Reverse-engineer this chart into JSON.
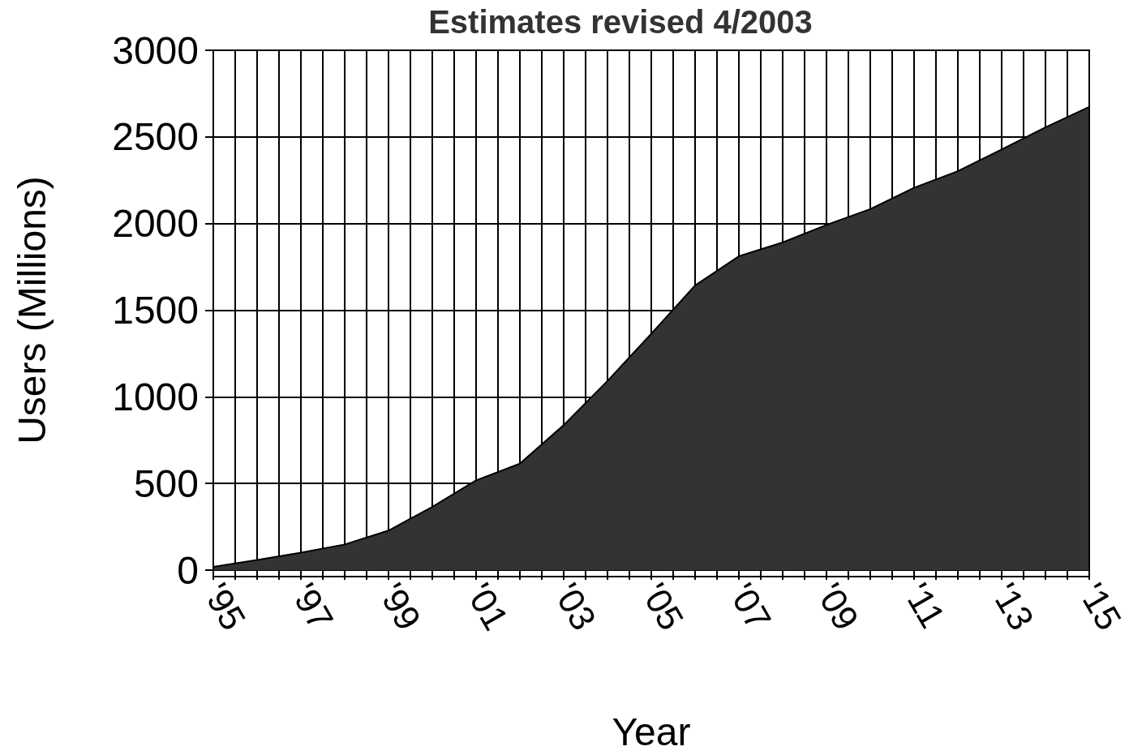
{
  "chart_data": {
    "type": "area",
    "title": "Estimates revised 4/2003",
    "xlabel": "Year",
    "ylabel": "Users (Millions)",
    "x": [
      1995,
      1996,
      1997,
      1998,
      1999,
      2000,
      2001,
      2002,
      2003,
      2004,
      2005,
      2006,
      2007,
      2008,
      2009,
      2010,
      2011,
      2012,
      2013,
      2014,
      2015
    ],
    "series": [
      {
        "color": "#333333",
        "values": [
          19,
          58,
          101,
          148,
          228,
          365,
          518,
          614,
          836,
          1091,
          1363,
          1642,
          1811,
          1891,
          1992,
          2083,
          2206,
          2302,
          2427,
          2555,
          2673
        ]
      }
    ],
    "xlim": [
      1995,
      2015
    ],
    "xticks": [
      {
        "value": 1995,
        "label": "'95"
      },
      {
        "value": 1995.5,
        "label": null
      },
      {
        "value": 1996,
        "label": null
      },
      {
        "value": 1996.5,
        "label": null
      },
      {
        "value": 1997,
        "label": "'97"
      },
      {
        "value": 1997.5,
        "label": null
      },
      {
        "value": 1998,
        "label": null
      },
      {
        "value": 1998.5,
        "label": null
      },
      {
        "value": 1999,
        "label": "'99"
      },
      {
        "value": 1999.5,
        "label": null
      },
      {
        "value": 2000,
        "label": null
      },
      {
        "value": 2000.5,
        "label": null
      },
      {
        "value": 2001,
        "label": "'01"
      },
      {
        "value": 2001.5,
        "label": null
      },
      {
        "value": 2002,
        "label": null
      },
      {
        "value": 2002.5,
        "label": null
      },
      {
        "value": 2003,
        "label": "'03"
      },
      {
        "value": 2003.5,
        "label": null
      },
      {
        "value": 2004,
        "label": null
      },
      {
        "value": 2004.5,
        "label": null
      },
      {
        "value": 2005,
        "label": "'05"
      },
      {
        "value": 2005.5,
        "label": null
      },
      {
        "value": 2006,
        "label": null
      },
      {
        "value": 2006.5,
        "label": null
      },
      {
        "value": 2007,
        "label": "'07"
      },
      {
        "value": 2007.5,
        "label": null
      },
      {
        "value": 2008,
        "label": null
      },
      {
        "value": 2008.5,
        "label": null
      },
      {
        "value": 2009,
        "label": "'09"
      },
      {
        "value": 2009.5,
        "label": null
      },
      {
        "value": 2010,
        "label": null
      },
      {
        "value": 2010.5,
        "label": null
      },
      {
        "value": 2011,
        "label": "'11"
      },
      {
        "value": 2011.5,
        "label": null
      },
      {
        "value": 2012,
        "label": null
      },
      {
        "value": 2012.5,
        "label": null
      },
      {
        "value": 2013,
        "label": "'13"
      },
      {
        "value": 2013.5,
        "label": null
      },
      {
        "value": 2014,
        "label": null
      },
      {
        "value": 2014.5,
        "label": null
      },
      {
        "value": 2015,
        "label": "'15"
      }
    ],
    "ylim": [
      0,
      3000
    ],
    "yticks": [
      0,
      500,
      1000,
      1500,
      2000,
      2500,
      3000
    ],
    "grid": true,
    "marker": "none",
    "line_style": "solid"
  }
}
